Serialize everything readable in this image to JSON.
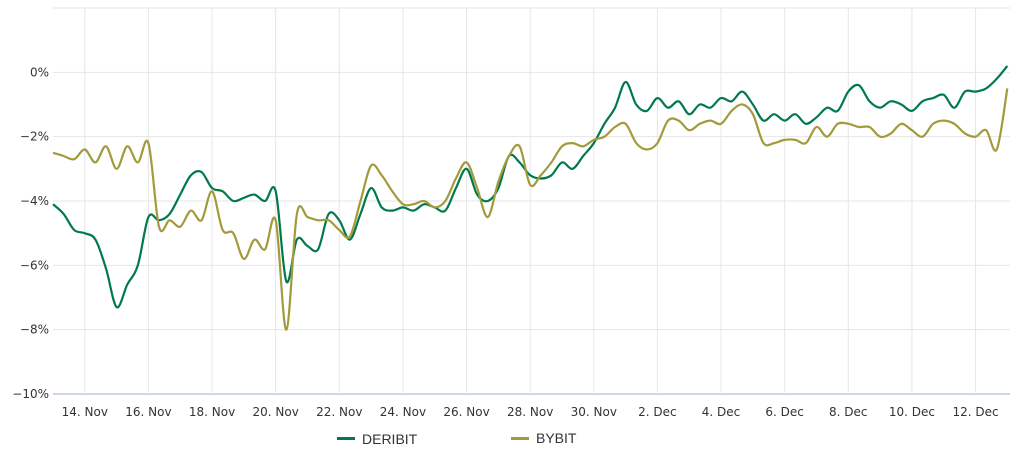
{
  "chart_data": {
    "type": "line",
    "title": "",
    "xlabel": "",
    "ylabel": "",
    "ylim": [
      -10,
      2
    ],
    "y_ticks": [
      "−10%",
      "−8%",
      "−6%",
      "−4%",
      "−2%",
      "0%"
    ],
    "y_tick_values": [
      -10,
      -8,
      -6,
      -4,
      -2,
      0,
      2
    ],
    "x_ticks": [
      "14. Nov",
      "16. Nov",
      "18. Nov",
      "20. Nov",
      "22. Nov",
      "24. Nov",
      "26. Nov",
      "28. Nov",
      "30. Nov",
      "2. Dec",
      "4. Dec",
      "6. Dec",
      "8. Dec",
      "10. Dec",
      "12. Dec"
    ],
    "x_tick_dates": [
      "Nov 14 00:00",
      "Nov 16 00:00",
      "Nov 18 00:00",
      "Nov 20 00:00",
      "Nov 22 00:00",
      "Nov 24 00:00",
      "Nov 26 00:00",
      "Nov 28 00:00",
      "Nov 30 00:00",
      "Dec 02 00:00",
      "Dec 04 00:00",
      "Dec 06 00:00",
      "Dec 08 00:00",
      "Dec 10 00:00",
      "Dec 12 00:00"
    ],
    "xlim": [
      "Nov 13 00:00",
      "Dec 13 02:00"
    ],
    "grid": true,
    "legend_position": "bottom",
    "x": [
      "Nov 13 00:00",
      "Nov 13 08:00",
      "Nov 13 16:00",
      "Nov 14 00:00",
      "Nov 14 08:00",
      "Nov 14 16:00",
      "Nov 15 00:00",
      "Nov 15 08:00",
      "Nov 15 16:00",
      "Nov 16 00:00",
      "Nov 16 08:00",
      "Nov 16 16:00",
      "Nov 17 00:00",
      "Nov 17 08:00",
      "Nov 17 16:00",
      "Nov 18 00:00",
      "Nov 18 08:00",
      "Nov 18 16:00",
      "Nov 19 00:00",
      "Nov 19 08:00",
      "Nov 19 16:00",
      "Nov 20 00:00",
      "Nov 20 08:00",
      "Nov 20 16:00",
      "Nov 21 00:00",
      "Nov 21 08:00",
      "Nov 21 16:00",
      "Nov 22 00:00",
      "Nov 22 08:00",
      "Nov 22 16:00",
      "Nov 23 00:00",
      "Nov 23 08:00",
      "Nov 23 16:00",
      "Nov 24 00:00",
      "Nov 24 08:00",
      "Nov 24 16:00",
      "Nov 25 00:00",
      "Nov 25 08:00",
      "Nov 25 16:00",
      "Nov 26 00:00",
      "Nov 26 08:00",
      "Nov 26 16:00",
      "Nov 27 00:00",
      "Nov 27 08:00",
      "Nov 27 16:00",
      "Nov 28 00:00",
      "Nov 28 08:00",
      "Nov 28 16:00",
      "Nov 29 00:00",
      "Nov 29 08:00",
      "Nov 29 16:00",
      "Nov 30 00:00",
      "Nov 30 08:00",
      "Nov 30 16:00",
      "Dec 01 00:00",
      "Dec 01 08:00",
      "Dec 01 16:00",
      "Dec 02 00:00",
      "Dec 02 08:00",
      "Dec 02 16:00",
      "Dec 03 00:00",
      "Dec 03 08:00",
      "Dec 03 16:00",
      "Dec 04 00:00",
      "Dec 04 08:00",
      "Dec 04 16:00",
      "Dec 05 00:00",
      "Dec 05 08:00",
      "Dec 05 16:00",
      "Dec 06 00:00",
      "Dec 06 08:00",
      "Dec 06 16:00",
      "Dec 07 00:00",
      "Dec 07 08:00",
      "Dec 07 16:00",
      "Dec 08 00:00",
      "Dec 08 08:00",
      "Dec 08 16:00",
      "Dec 09 00:00",
      "Dec 09 08:00",
      "Dec 09 16:00",
      "Dec 10 00:00",
      "Dec 10 08:00",
      "Dec 10 16:00",
      "Dec 11 00:00",
      "Dec 11 08:00",
      "Dec 11 16:00",
      "Dec 12 00:00",
      "Dec 12 08:00",
      "Dec 12 16:00",
      "Dec 13 00:00"
    ],
    "series": [
      {
        "name": "DERIBIT",
        "color": "#007A4D",
        "values": [
          -4.1,
          -4.4,
          -4.9,
          -5.0,
          -5.2,
          -6.1,
          -7.3,
          -6.6,
          -6.0,
          -4.5,
          -4.6,
          -4.4,
          -3.8,
          -3.2,
          -3.1,
          -3.6,
          -3.7,
          -4.0,
          -3.9,
          -3.8,
          -4.0,
          -3.7,
          -6.5,
          -5.2,
          -5.4,
          -5.5,
          -4.4,
          -4.6,
          -5.2,
          -4.4,
          -3.6,
          -4.2,
          -4.3,
          -4.2,
          -4.3,
          -4.1,
          -4.2,
          -4.3,
          -3.6,
          -3.0,
          -3.8,
          -4.0,
          -3.6,
          -2.6,
          -2.8,
          -3.2,
          -3.3,
          -3.2,
          -2.8,
          -3.0,
          -2.6,
          -2.2,
          -1.6,
          -1.1,
          -0.3,
          -1.0,
          -1.2,
          -0.8,
          -1.1,
          -0.9,
          -1.3,
          -1.0,
          -1.1,
          -0.8,
          -0.9,
          -0.6,
          -1.0,
          -1.5,
          -1.3,
          -1.5,
          -1.3,
          -1.6,
          -1.4,
          -1.1,
          -1.2,
          -0.6,
          -0.4,
          -0.9,
          -1.1,
          -0.9,
          -1.0,
          -1.2,
          -0.9,
          -0.8,
          -0.7,
          -1.1,
          -0.6,
          -0.6,
          -0.5,
          -0.2,
          0.2
        ]
      },
      {
        "name": "BYBIT",
        "color": "#A29A3C",
        "values": [
          -2.5,
          -2.6,
          -2.7,
          -2.4,
          -2.8,
          -2.3,
          -3.0,
          -2.3,
          -2.8,
          -2.2,
          -4.8,
          -4.6,
          -4.8,
          -4.3,
          -4.6,
          -3.7,
          -4.9,
          -5.0,
          -5.8,
          -5.2,
          -5.5,
          -4.6,
          -8.0,
          -4.4,
          -4.5,
          -4.6,
          -4.6,
          -4.9,
          -5.1,
          -4.0,
          -2.9,
          -3.2,
          -3.7,
          -4.1,
          -4.1,
          -4.0,
          -4.2,
          -4.0,
          -3.3,
          -2.8,
          -3.6,
          -4.5,
          -3.4,
          -2.6,
          -2.3,
          -3.5,
          -3.2,
          -2.8,
          -2.3,
          -2.2,
          -2.3,
          -2.1,
          -2.0,
          -1.7,
          -1.6,
          -2.2,
          -2.4,
          -2.2,
          -1.5,
          -1.5,
          -1.8,
          -1.6,
          -1.5,
          -1.6,
          -1.2,
          -1.0,
          -1.3,
          -2.2,
          -2.2,
          -2.1,
          -2.1,
          -2.2,
          -1.7,
          -2.0,
          -1.6,
          -1.6,
          -1.7,
          -1.7,
          -2.0,
          -1.9,
          -1.6,
          -1.8,
          -2.0,
          -1.6,
          -1.5,
          -1.6,
          -1.9,
          -2.0,
          -1.8,
          -2.4,
          -0.5
        ]
      }
    ]
  }
}
